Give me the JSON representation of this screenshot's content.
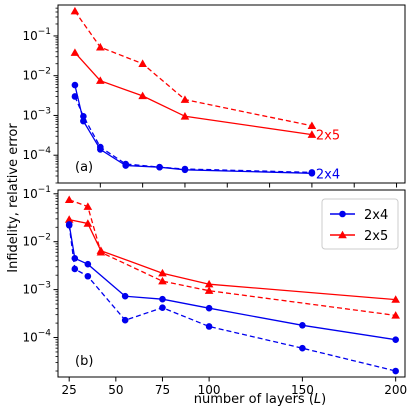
{
  "chart_data": [
    {
      "type": "line",
      "panel_label": "(a)",
      "ylabel": "",
      "yscale": "log",
      "ylim": [
        2e-05,
        0.6
      ],
      "xlim": [
        0,
        205
      ],
      "ytick_labels": [
        {
          "value": 0.1,
          "base": "10",
          "exp": "−1"
        },
        {
          "value": 0.01,
          "base": "10",
          "exp": "−2"
        },
        {
          "value": 0.001,
          "base": "10",
          "exp": "−3"
        },
        {
          "value": 0.0001,
          "base": "10",
          "exp": "−4"
        }
      ],
      "xtick_values": [
        25,
        50,
        75,
        100,
        125,
        150,
        175,
        200
      ],
      "series": [
        {
          "color": "#ff0000",
          "marker": "triangle",
          "dashed": false,
          "x": [
            10,
            25,
            50,
            75,
            150
          ],
          "y": [
            0.038,
            0.0075,
            0.0031,
            0.00095,
            0.00033
          ],
          "end_label": "2x5"
        },
        {
          "color": "#ff0000",
          "marker": "triangle",
          "dashed": true,
          "x": [
            10,
            25,
            50,
            75,
            150
          ],
          "y": [
            0.42,
            0.052,
            0.02,
            0.0025,
            0.00055
          ]
        },
        {
          "color": "#0000ee",
          "marker": "circle",
          "dashed": false,
          "x": [
            10,
            15,
            25,
            40,
            60,
            75,
            150
          ],
          "y": [
            0.0058,
            0.00072,
            0.00014,
            5.5e-05,
            5e-05,
            4.3e-05,
            3.5e-05
          ],
          "end_label": "2x4"
        },
        {
          "color": "#0000ee",
          "marker": "circle",
          "dashed": true,
          "x": [
            10,
            15,
            25,
            40,
            60,
            75,
            150
          ],
          "y": [
            0.003,
            0.00095,
            0.00016,
            6e-05,
            5e-05,
            4.5e-05,
            3.7e-05
          ]
        }
      ]
    },
    {
      "type": "line",
      "panel_label": "(b)",
      "xlabel": "number of layers (L)",
      "xlabel_parts": {
        "pre": "number of layers (",
        "var": "L",
        "post": ")"
      },
      "ylabel": "Infidelity, relative error",
      "yscale": "log",
      "ylim": [
        1.5e-05,
        0.12
      ],
      "xlim": [
        19,
        205
      ],
      "xtick_labels": [
        "25",
        "50",
        "75",
        "100",
        "150",
        "200"
      ],
      "xtick_values": [
        25,
        50,
        75,
        100,
        150,
        200
      ],
      "ytick_labels": [
        {
          "value": 0.1,
          "base": "10",
          "exp": "−1"
        },
        {
          "value": 0.01,
          "base": "10",
          "exp": "−2"
        },
        {
          "value": 0.001,
          "base": "10",
          "exp": "−3"
        },
        {
          "value": 0.0001,
          "base": "10",
          "exp": "−4"
        }
      ],
      "legend": {
        "placement": "top-right",
        "entries": [
          {
            "label": "2x4",
            "color": "#0000ee",
            "marker": "circle"
          },
          {
            "label": "2x5",
            "color": "#ff0000",
            "marker": "triangle"
          }
        ]
      },
      "series": [
        {
          "color": "#ff0000",
          "marker": "triangle",
          "dashed": false,
          "x": [
            25,
            35,
            42,
            75,
            100,
            200
          ],
          "y": [
            0.029,
            0.024,
            0.0065,
            0.0022,
            0.0013,
            0.00062
          ]
        },
        {
          "color": "#ff0000",
          "marker": "triangle",
          "dashed": true,
          "x": [
            25,
            35,
            42,
            75,
            100,
            200
          ],
          "y": [
            0.075,
            0.054,
            0.006,
            0.0015,
            0.00095,
            0.00029
          ]
        },
        {
          "color": "#0000ee",
          "marker": "circle",
          "dashed": false,
          "x": [
            25,
            28,
            35,
            55,
            75,
            100,
            150,
            200
          ],
          "y": [
            0.023,
            0.0045,
            0.0034,
            0.00073,
            0.00063,
            0.00041,
            0.00018,
            9e-05
          ]
        },
        {
          "color": "#0000ee",
          "marker": "circle",
          "dashed": true,
          "x": [
            25,
            28,
            35,
            55,
            75,
            100,
            150,
            200
          ],
          "y": [
            0.022,
            0.0027,
            0.0019,
            0.00023,
            0.00042,
            0.00017,
            6e-05,
            2e-05
          ]
        }
      ]
    }
  ]
}
